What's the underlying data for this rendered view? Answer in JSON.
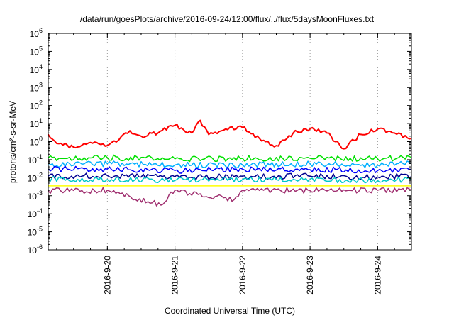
{
  "chart_data": {
    "type": "line",
    "title": "/data/run/goesPlots/archive/2016-09-24/12:00/flux/../flux/5daysMoonFluxes.txt",
    "xlabel": "Coordinated Universal Time (UTC)",
    "ylabel": "protons/cm²-s-sr-MeV",
    "x_range": [
      "2016-09-19 03:00",
      "2016-09-24 12:00"
    ],
    "x_ticks": [
      "2016-9-20",
      "2016-9-21",
      "2016-9-22",
      "2016-9-23",
      "2016-9-24"
    ],
    "y_scale": "log",
    "y_range": [
      1e-06,
      1000000.0
    ],
    "y_ticks": [
      {
        "base": "10",
        "exp": "-6"
      },
      {
        "base": "10",
        "exp": "-5"
      },
      {
        "base": "10",
        "exp": "-4"
      },
      {
        "base": "10",
        "exp": "-3"
      },
      {
        "base": "10",
        "exp": "-2"
      },
      {
        "base": "10",
        "exp": "-1"
      },
      {
        "base": "10",
        "exp": "0"
      },
      {
        "base": "10",
        "exp": "1"
      },
      {
        "base": "10",
        "exp": "2"
      },
      {
        "base": "10",
        "exp": "3"
      },
      {
        "base": "10",
        "exp": "4"
      },
      {
        "base": "10",
        "exp": "5"
      },
      {
        "base": "10",
        "exp": "6"
      }
    ],
    "grid": "vertical dotted at day ticks",
    "legend": "none",
    "series": [
      {
        "color": "#ff0000",
        "x": [
          "2016-09-19 03:00",
          "2016-09-19 06:00",
          "2016-09-19 12:00",
          "2016-09-19 18:00",
          "2016-09-20 00:00",
          "2016-09-20 04:00",
          "2016-09-20 08:00",
          "2016-09-20 12:00",
          "2016-09-20 18:00",
          "2016-09-21 00:00",
          "2016-09-21 06:00",
          "2016-09-21 09:00",
          "2016-09-21 12:00",
          "2016-09-21 18:00",
          "2016-09-22 00:00",
          "2016-09-22 06:00",
          "2016-09-22 12:00",
          "2016-09-22 18:00",
          "2016-09-23 00:00",
          "2016-09-23 06:00",
          "2016-09-23 12:00",
          "2016-09-23 18:00",
          "2016-09-24 00:00",
          "2016-09-24 06:00",
          "2016-09-24 12:00"
        ],
        "values": [
          2.5,
          0.8,
          0.5,
          0.9,
          0.6,
          1.2,
          4,
          2,
          3,
          8,
          3,
          15,
          2.5,
          5,
          6,
          1.5,
          0.6,
          3,
          5,
          3,
          0.4,
          2.5,
          5,
          3,
          1.5
        ]
      },
      {
        "color": "#00e000",
        "x": [
          "2016-09-19 03:00",
          "2016-09-20 00:00",
          "2016-09-21 00:00",
          "2016-09-22 00:00",
          "2016-09-23 00:00",
          "2016-09-24 00:00",
          "2016-09-24 12:00"
        ],
        "values": [
          0.12,
          0.13,
          0.11,
          0.12,
          0.12,
          0.11,
          0.13
        ]
      },
      {
        "color": "#00b0ff",
        "x": [
          "2016-09-19 03:00",
          "2016-09-20 00:00",
          "2016-09-21 00:00",
          "2016-09-22 00:00",
          "2016-09-23 00:00",
          "2016-09-24 00:00",
          "2016-09-24 12:00"
        ],
        "values": [
          0.05,
          0.06,
          0.05,
          0.05,
          0.06,
          0.05,
          0.06
        ]
      },
      {
        "color": "#0000ff",
        "x": [
          "2016-09-19 03:00",
          "2016-09-20 00:00",
          "2016-09-21 00:00",
          "2016-09-22 00:00",
          "2016-09-23 00:00",
          "2016-09-24 00:00",
          "2016-09-24 12:00"
        ],
        "values": [
          0.03,
          0.03,
          0.025,
          0.03,
          0.028,
          0.025,
          0.028
        ]
      },
      {
        "color": "#000090",
        "x": [
          "2016-09-19 03:00",
          "2016-09-20 00:00",
          "2016-09-21 00:00",
          "2016-09-22 00:00",
          "2016-09-23 00:00",
          "2016-09-24 00:00",
          "2016-09-24 12:00"
        ],
        "values": [
          0.012,
          0.013,
          0.011,
          0.012,
          0.012,
          0.011,
          0.012
        ]
      },
      {
        "color": "#00c8c8",
        "x": [
          "2016-09-19 03:00",
          "2016-09-20 00:00",
          "2016-09-21 00:00",
          "2016-09-22 00:00",
          "2016-09-23 00:00",
          "2016-09-24 00:00",
          "2016-09-24 12:00"
        ],
        "values": [
          0.008,
          0.008,
          0.007,
          0.008,
          0.008,
          0.007,
          0.008
        ]
      },
      {
        "color": "#ffff00",
        "x": [
          "2016-09-19 03:00",
          "2016-09-24 12:00"
        ],
        "values": [
          0.0035,
          0.0035
        ]
      },
      {
        "color": "#a03070",
        "x": [
          "2016-09-19 03:00",
          "2016-09-20 00:00",
          "2016-09-20 19:00",
          "2016-09-21 00:00",
          "2016-09-21 21:00",
          "2016-09-22 00:00",
          "2016-09-23 00:00",
          "2016-09-24 00:00",
          "2016-09-24 12:00"
        ],
        "values": [
          0.0019,
          0.002,
          0.0003,
          0.002,
          0.0006,
          0.002,
          0.0019,
          0.002,
          0.002
        ]
      }
    ]
  }
}
